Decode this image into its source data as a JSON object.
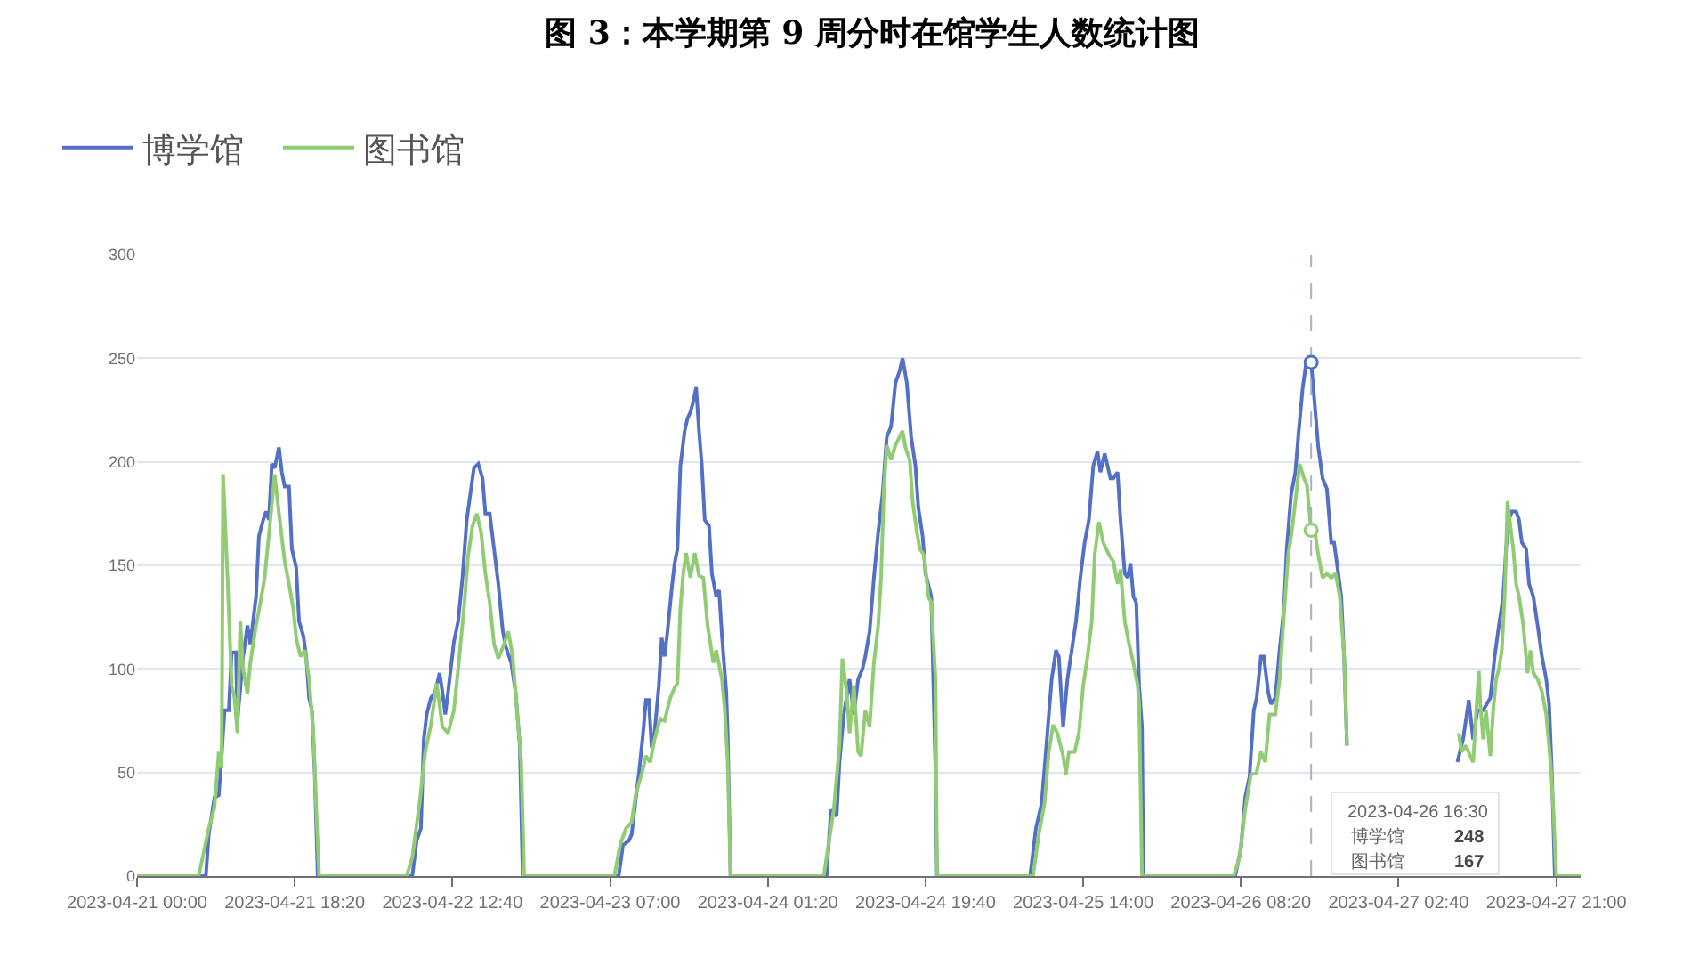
{
  "chart_data": {
    "type": "line",
    "title": "图 3：本学期第 9 周分时在馆学生人数统计图",
    "series": [
      {
        "name": "博学馆",
        "color": "#5470c6",
        "x": [
          "2023-04-21T00:00",
          "2023-04-21T08:00",
          "2023-04-21T08:20",
          "2023-04-21T09:00",
          "2023-04-21T09:30",
          "2023-04-21T09:50",
          "2023-04-21T10:10",
          "2023-04-21T10:40",
          "2023-04-21T11:00",
          "2023-04-21T11:30",
          "2023-04-21T11:40",
          "2023-04-21T12:20",
          "2023-04-21T12:50",
          "2023-04-21T13:10",
          "2023-04-21T13:50",
          "2023-04-21T14:10",
          "2023-04-21T14:40",
          "2023-04-21T15:00",
          "2023-04-21T15:20",
          "2023-04-21T15:40",
          "2023-04-21T16:00",
          "2023-04-21T16:30",
          "2023-04-21T16:50",
          "2023-04-21T17:10",
          "2023-04-21T17:40",
          "2023-04-21T18:00",
          "2023-04-21T18:30",
          "2023-04-21T18:50",
          "2023-04-21T19:20",
          "2023-04-21T19:40",
          "2023-04-21T20:00",
          "2023-04-21T20:20",
          "2023-04-21T20:40",
          "2023-04-21T21:00",
          "2023-04-22T08:00",
          "2023-04-22T08:30",
          "2023-04-22T09:00",
          "2023-04-22T09:20",
          "2023-04-22T09:40",
          "2023-04-22T10:10",
          "2023-04-22T10:40",
          "2023-04-22T11:10",
          "2023-04-22T11:30",
          "2023-04-22T11:50",
          "2023-04-22T12:10",
          "2023-04-22T12:50",
          "2023-04-22T13:20",
          "2023-04-22T13:50",
          "2023-04-22T14:20",
          "2023-04-22T14:50",
          "2023-04-22T15:10",
          "2023-04-22T15:40",
          "2023-04-22T16:10",
          "2023-04-22T16:30",
          "2023-04-22T17:00",
          "2023-04-22T17:30",
          "2023-04-22T18:00",
          "2023-04-22T18:30",
          "2023-04-22T18:50",
          "2023-04-22T19:30",
          "2023-04-22T20:00",
          "2023-04-22T20:30",
          "2023-04-22T20:50",
          "2023-04-23T08:00",
          "2023-04-23T08:30",
          "2023-04-23T09:10",
          "2023-04-23T09:30",
          "2023-04-23T10:00",
          "2023-04-23T10:20",
          "2023-04-23T10:50",
          "2023-04-23T11:10",
          "2023-04-23T11:30",
          "2023-04-23T11:50",
          "2023-04-23T12:10",
          "2023-04-23T12:40",
          "2023-04-23T13:00",
          "2023-04-23T13:20",
          "2023-04-23T13:40",
          "2023-04-23T14:10",
          "2023-04-23T14:30",
          "2023-04-23T14:50",
          "2023-04-23T15:10",
          "2023-04-23T15:40",
          "2023-04-23T16:00",
          "2023-04-23T16:20",
          "2023-04-23T16:40",
          "2023-04-23T17:00",
          "2023-04-23T17:20",
          "2023-04-23T17:40",
          "2023-04-23T18:00",
          "2023-04-23T18:30",
          "2023-04-23T18:50",
          "2023-04-23T19:20",
          "2023-04-23T19:40",
          "2023-04-23T20:00",
          "2023-04-23T20:30",
          "2023-04-23T20:40",
          "2023-04-23T21:00",
          "2023-04-24T08:10",
          "2023-04-24T08:40",
          "2023-04-24T09:20",
          "2023-04-24T09:40",
          "2023-04-24T10:10",
          "2023-04-24T10:50",
          "2023-04-24T11:20",
          "2023-04-24T11:50",
          "2023-04-24T12:20",
          "2023-04-24T12:40",
          "2023-04-24T13:10",
          "2023-04-24T13:40",
          "2023-04-24T14:10",
          "2023-04-24T14:40",
          "2023-04-24T15:10",
          "2023-04-24T15:40",
          "2023-04-24T16:10",
          "2023-04-24T16:40",
          "2023-04-24T17:00",
          "2023-04-24T17:30",
          "2023-04-24T18:00",
          "2023-04-24T18:30",
          "2023-04-24T18:50",
          "2023-04-24T19:20",
          "2023-04-24T19:40",
          "2023-04-24T20:20",
          "2023-04-24T20:30",
          "2023-04-24T20:50",
          "2023-04-24T21:00",
          "2023-04-25T07:50",
          "2023-04-25T08:30",
          "2023-04-25T09:10",
          "2023-04-25T09:50",
          "2023-04-25T10:20",
          "2023-04-25T10:50",
          "2023-04-25T11:10",
          "2023-04-25T11:40",
          "2023-04-25T12:10",
          "2023-04-25T12:40",
          "2023-04-25T13:10",
          "2023-04-25T13:40",
          "2023-04-25T14:10",
          "2023-04-25T14:40",
          "2023-04-25T15:10",
          "2023-04-25T15:40",
          "2023-04-25T16:00",
          "2023-04-25T16:30",
          "2023-04-25T17:10",
          "2023-04-25T17:30",
          "2023-04-25T18:00",
          "2023-04-25T18:20",
          "2023-04-25T18:50",
          "2023-04-25T19:10",
          "2023-04-25T19:30",
          "2023-04-25T19:50",
          "2023-04-25T20:10",
          "2023-04-25T20:30",
          "2023-04-25T20:50",
          "2023-04-25T21:00",
          "2023-04-26T07:40",
          "2023-04-26T08:20",
          "2023-04-26T08:50",
          "2023-04-26T09:20",
          "2023-04-26T09:50",
          "2023-04-26T10:10",
          "2023-04-26T10:40",
          "2023-04-26T11:00",
          "2023-04-26T11:30",
          "2023-04-26T11:50",
          "2023-04-26T12:20",
          "2023-04-26T12:50",
          "2023-04-26T13:20",
          "2023-04-26T13:40",
          "2023-04-26T14:10",
          "2023-04-26T14:40",
          "2023-04-26T15:00",
          "2023-04-26T15:30",
          "2023-04-26T16:00",
          "2023-04-26T16:30",
          "2023-04-26T16:50",
          "2023-04-26T17:20",
          "2023-04-26T17:50",
          "2023-04-26T18:20",
          "2023-04-26T18:50",
          "2023-04-26T19:10",
          "2023-04-26T19:30",
          "2023-04-26T20:00",
          "2023-04-26T20:20",
          "2023-04-26T20:40",
          "2023-04-26T21:00",
          "2023-04-27T09:30",
          "2023-04-27T10:10",
          "2023-04-27T10:50",
          "2023-04-27T11:20",
          "2023-04-27T11:50",
          "2023-04-27T12:30",
          "2023-04-27T13:20",
          "2023-04-27T13:50",
          "2023-04-27T14:20",
          "2023-04-27T14:50",
          "2023-04-27T15:10",
          "2023-04-27T15:30",
          "2023-04-27T15:50",
          "2023-04-27T16:20",
          "2023-04-27T16:40",
          "2023-04-27T17:00",
          "2023-04-27T17:30",
          "2023-04-27T17:50",
          "2023-04-27T18:20",
          "2023-04-27T18:50",
          "2023-04-27T19:20",
          "2023-04-27T19:50",
          "2023-04-27T20:10",
          "2023-04-27T20:30",
          "2023-04-27T20:50",
          "2023-04-27T23:50"
        ],
        "values": [
          0,
          0,
          20,
          38,
          39,
          58,
          80,
          80,
          108,
          108,
          75,
          106,
          121,
          112,
          135,
          164,
          172,
          176,
          172,
          199,
          197,
          207,
          195,
          188,
          188,
          158,
          149,
          123,
          116,
          106,
          86,
          80,
          49,
          0,
          0,
          17,
          23,
          66,
          78,
          86,
          89,
          98,
          89,
          78,
          89,
          113,
          123,
          144,
          172,
          187,
          197,
          199,
          192,
          175,
          175,
          158,
          141,
          119,
          111,
          103,
          89,
          63,
          0,
          0,
          15,
          17,
          20,
          38,
          49,
          69,
          85,
          85,
          62,
          69,
          92,
          115,
          106,
          118,
          139,
          151,
          158,
          198,
          215,
          221,
          224,
          229,
          236,
          215,
          198,
          172,
          169,
          146,
          135,
          138,
          116,
          89,
          69,
          0,
          0,
          32,
          29,
          55,
          78,
          95,
          78,
          95,
          100,
          106,
          118,
          144,
          166,
          184,
          212,
          217,
          238,
          244,
          250,
          238,
          212,
          198,
          178,
          164,
          146,
          135,
          106,
          49,
          0,
          0,
          23,
          35,
          69,
          95,
          109,
          106,
          72,
          95,
          109,
          123,
          144,
          161,
          172,
          198,
          205,
          195,
          204,
          192,
          192,
          195,
          172,
          146,
          144,
          151,
          135,
          132,
          92,
          72,
          0,
          0,
          13,
          38,
          48,
          80,
          86,
          106,
          106,
          89,
          83,
          86,
          109,
          129,
          158,
          184,
          195,
          212,
          235,
          250,
          248,
          232,
          207,
          192,
          187,
          161,
          161,
          151,
          135,
          106,
          63,
          null,
          55,
          66,
          85,
          66,
          80,
          80,
          86,
          106,
          121,
          135,
          158,
          172,
          176,
          176,
          172,
          161,
          158,
          141,
          135,
          121,
          106,
          95,
          83,
          49,
          0,
          0
        ]
      },
      {
        "name": "图书馆",
        "color": "#91cc75",
        "x": [
          "2023-04-21T00:00",
          "2023-04-21T07:10",
          "2023-04-21T08:20",
          "2023-04-21T09:00",
          "2023-04-21T09:30",
          "2023-04-21T09:50",
          "2023-04-21T10:00",
          "2023-04-21T10:30",
          "2023-04-21T11:00",
          "2023-04-21T11:20",
          "2023-04-21T11:40",
          "2023-04-21T12:00",
          "2023-04-21T12:20",
          "2023-04-21T12:50",
          "2023-04-21T13:10",
          "2023-04-21T13:50",
          "2023-04-21T14:20",
          "2023-04-21T14:50",
          "2023-04-21T15:30",
          "2023-04-21T16:00",
          "2023-04-21T16:30",
          "2023-04-21T17:10",
          "2023-04-21T17:40",
          "2023-04-21T18:10",
          "2023-04-21T18:30",
          "2023-04-21T19:00",
          "2023-04-21T19:30",
          "2023-04-21T20:00",
          "2023-04-21T20:30",
          "2023-04-21T20:50",
          "2023-04-21T21:10",
          "2023-04-22T07:20",
          "2023-04-22T08:00",
          "2023-04-22T08:50",
          "2023-04-22T09:30",
          "2023-04-22T10:10",
          "2023-04-22T10:50",
          "2023-04-22T11:30",
          "2023-04-22T12:10",
          "2023-04-22T12:50",
          "2023-04-22T13:20",
          "2023-04-22T14:00",
          "2023-04-22T14:30",
          "2023-04-22T15:00",
          "2023-04-22T15:30",
          "2023-04-22T16:00",
          "2023-04-22T16:30",
          "2023-04-22T17:00",
          "2023-04-22T17:30",
          "2023-04-22T18:00",
          "2023-04-22T18:40",
          "2023-04-22T19:10",
          "2023-04-22T19:40",
          "2023-04-22T20:10",
          "2023-04-22T20:40",
          "2023-04-22T21:00",
          "2023-04-23T07:30",
          "2023-04-23T08:10",
          "2023-04-23T08:50",
          "2023-04-23T09:30",
          "2023-04-23T10:00",
          "2023-04-23T10:40",
          "2023-04-23T11:10",
          "2023-04-23T11:40",
          "2023-04-23T12:10",
          "2023-04-23T12:50",
          "2023-04-23T13:20",
          "2023-04-23T14:00",
          "2023-04-23T14:30",
          "2023-04-23T14:50",
          "2023-04-23T15:10",
          "2023-04-23T15:30",
          "2023-04-23T15:50",
          "2023-04-23T16:20",
          "2023-04-23T16:50",
          "2023-04-23T17:20",
          "2023-04-23T17:50",
          "2023-04-23T18:20",
          "2023-04-23T19:00",
          "2023-04-23T19:20",
          "2023-04-23T20:00",
          "2023-04-23T20:20",
          "2023-04-23T20:40",
          "2023-04-23T21:00",
          "2023-04-24T07:50",
          "2023-04-24T09:00",
          "2023-04-24T09:40",
          "2023-04-24T10:00",
          "2023-04-24T10:30",
          "2023-04-24T10:50",
          "2023-04-24T11:20",
          "2023-04-24T11:50",
          "2023-04-24T12:10",
          "2023-04-24T12:40",
          "2023-04-24T13:10",
          "2023-04-24T13:40",
          "2023-04-24T14:10",
          "2023-04-24T14:30",
          "2023-04-24T14:50",
          "2023-04-24T15:10",
          "2023-04-24T15:40",
          "2023-04-24T16:10",
          "2023-04-24T16:40",
          "2023-04-24T17:00",
          "2023-04-24T17:20",
          "2023-04-24T17:50",
          "2023-04-24T18:10",
          "2023-04-24T18:40",
          "2023-04-24T19:00",
          "2023-04-24T19:30",
          "2023-04-24T20:00",
          "2023-04-24T20:20",
          "2023-04-24T20:50",
          "2023-04-24T21:00",
          "2023-04-25T08:10",
          "2023-04-25T08:50",
          "2023-04-25T09:30",
          "2023-04-25T10:00",
          "2023-04-25T10:30",
          "2023-04-25T11:00",
          "2023-04-25T11:40",
          "2023-04-25T12:00",
          "2023-04-25T12:20",
          "2023-04-25T13:00",
          "2023-04-25T13:30",
          "2023-04-25T14:00",
          "2023-04-25T14:30",
          "2023-04-25T15:00",
          "2023-04-25T15:20",
          "2023-04-25T15:50",
          "2023-04-25T16:20",
          "2023-04-25T17:00",
          "2023-04-25T17:30",
          "2023-04-25T18:00",
          "2023-04-25T18:20",
          "2023-04-25T18:50",
          "2023-04-25T19:20",
          "2023-04-25T19:50",
          "2023-04-25T20:20",
          "2023-04-25T20:30",
          "2023-04-25T20:50",
          "2023-04-26T07:30",
          "2023-04-26T08:10",
          "2023-04-26T08:50",
          "2023-04-26T09:30",
          "2023-04-26T10:10",
          "2023-04-26T10:40",
          "2023-04-26T11:10",
          "2023-04-26T11:40",
          "2023-04-26T12:20",
          "2023-04-26T12:50",
          "2023-04-26T13:20",
          "2023-04-26T13:50",
          "2023-04-26T14:20",
          "2023-04-26T14:50",
          "2023-04-26T15:10",
          "2023-04-26T15:40",
          "2023-04-26T16:00",
          "2023-04-26T16:30",
          "2023-04-26T16:50",
          "2023-04-26T17:20",
          "2023-04-26T17:50",
          "2023-04-26T18:20",
          "2023-04-26T18:50",
          "2023-04-26T19:20",
          "2023-04-26T19:50",
          "2023-04-26T20:20",
          "2023-04-26T20:40",
          "2023-04-26T21:00",
          "2023-04-27T09:40",
          "2023-04-27T10:00",
          "2023-04-27T10:30",
          "2023-04-27T11:00",
          "2023-04-27T11:20",
          "2023-04-27T11:40",
          "2023-04-27T12:00",
          "2023-04-27T12:10",
          "2023-04-27T12:30",
          "2023-04-27T12:50",
          "2023-04-27T13:20",
          "2023-04-27T13:40",
          "2023-04-27T14:00",
          "2023-04-27T14:20",
          "2023-04-27T14:40",
          "2023-04-27T15:00",
          "2023-04-27T15:20",
          "2023-04-27T15:40",
          "2023-04-27T16:00",
          "2023-04-27T16:20",
          "2023-04-27T16:40",
          "2023-04-27T17:10",
          "2023-04-27T17:40",
          "2023-04-27T18:00",
          "2023-04-27T18:20",
          "2023-04-27T18:50",
          "2023-04-27T19:20",
          "2023-04-27T19:50",
          "2023-04-27T20:20",
          "2023-04-27T20:40",
          "2023-04-27T21:00",
          "2023-04-27T23:50"
        ],
        "values": [
          0,
          0,
          23,
          33,
          60,
          52,
          194,
          146,
          92,
          86,
          69,
          123,
          100,
          88,
          103,
          121,
          132,
          144,
          172,
          194,
          175,
          152,
          141,
          129,
          115,
          106,
          109,
          95,
          69,
          32,
          0,
          0,
          9,
          35,
          60,
          73,
          93,
          72,
          69,
          80,
          100,
          129,
          155,
          169,
          175,
          166,
          146,
          132,
          112,
          105,
          112,
          118,
          106,
          80,
          55,
          0,
          0,
          15,
          23,
          26,
          40,
          49,
          58,
          55,
          66,
          76,
          75,
          86,
          91,
          93,
          129,
          146,
          156,
          144,
          156,
          145,
          144,
          121,
          103,
          109,
          95,
          80,
          55,
          0,
          0,
          32,
          63,
          105,
          89,
          69,
          92,
          60,
          58,
          80,
          72,
          103,
          121,
          144,
          187,
          208,
          201,
          208,
          212,
          215,
          207,
          201,
          181,
          166,
          158,
          155,
          135,
          132,
          95,
          0,
          0,
          20,
          35,
          60,
          73,
          69,
          58,
          49,
          60,
          60,
          69,
          92,
          106,
          123,
          155,
          171,
          161,
          155,
          152,
          141,
          148,
          123,
          112,
          103,
          92,
          83,
          0,
          0,
          9,
          32,
          49,
          50,
          60,
          55,
          78,
          78,
          95,
          126,
          155,
          169,
          187,
          199,
          192,
          189,
          167,
          169,
          155,
          144,
          146,
          144,
          146,
          135,
          106,
          63,
          null,
          69,
          60,
          63,
          58,
          55,
          78,
          99,
          83,
          66,
          80,
          58,
          80,
          95,
          100,
          109,
          135,
          181,
          169,
          158,
          141,
          135,
          121,
          98,
          109,
          98,
          95,
          89,
          78,
          55,
          32,
          0,
          0
        ]
      }
    ],
    "xlim": [
      "2023-04-21T00:00",
      "2023-04-27T23:50"
    ],
    "xticks": [
      {
        "value": "2023-04-21T00:00",
        "label": "2023-04-21 00:00"
      },
      {
        "value": "2023-04-21T18:20",
        "label": "2023-04-21 18:20"
      },
      {
        "value": "2023-04-22T12:40",
        "label": "2023-04-22 12:40"
      },
      {
        "value": "2023-04-23T07:00",
        "label": "2023-04-23 07:00"
      },
      {
        "value": "2023-04-24T01:20",
        "label": "2023-04-24 01:20"
      },
      {
        "value": "2023-04-24T19:40",
        "label": "2023-04-24 19:40"
      },
      {
        "value": "2023-04-25T14:00",
        "label": "2023-04-25 14:00"
      },
      {
        "value": "2023-04-26T08:20",
        "label": "2023-04-26 08:20"
      },
      {
        "value": "2023-04-27T02:40",
        "label": "2023-04-27 02:40"
      },
      {
        "value": "2023-04-27T21:00",
        "label": "2023-04-27 21:00"
      }
    ],
    "ylim": [
      0,
      300
    ],
    "yticks": [
      0,
      50,
      100,
      150,
      200,
      250,
      300
    ],
    "grid": "y",
    "legend": "top left",
    "ref_lines": [
      {
        "axis": "x",
        "value": "2023-04-26T16:30",
        "color": "#a9b0c4",
        "line_style": "dashed"
      }
    ],
    "annotations": [
      "2023-04-26 16:30",
      "博学馆",
      "248",
      "图书馆",
      "167"
    ]
  }
}
